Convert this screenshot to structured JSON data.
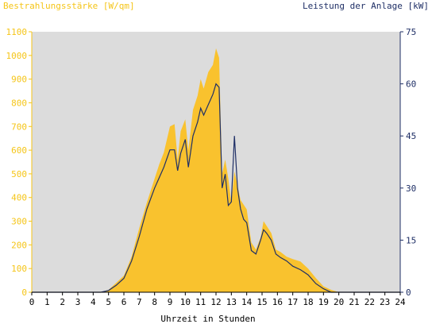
{
  "chart_data": {
    "type": "area",
    "title_left": "Bestrahlungsstärke [W/qm]",
    "title_right": "Leistung der Anlage [kW]",
    "xlabel": "Uhrzeit in Stunden",
    "xlim": [
      0,
      24
    ],
    "ylim_left": [
      0,
      1100
    ],
    "ylim_right": [
      0,
      75
    ],
    "x_ticks": [
      "0",
      "1",
      "2",
      "3",
      "4",
      "5",
      "6",
      "7",
      "8",
      "9",
      "10",
      "11",
      "12",
      "13",
      "14",
      "15",
      "16",
      "17",
      "18",
      "19",
      "20",
      "21",
      "22",
      "23",
      "24"
    ],
    "y_left_ticks": [
      "0",
      "100",
      "200",
      "300",
      "400",
      "500",
      "600",
      "700",
      "800",
      "900",
      "1000",
      "1100"
    ],
    "y_right_ticks": [
      "0",
      "15",
      "30",
      "45",
      "60",
      "75"
    ],
    "grid": false,
    "colors": {
      "irradiance": "#f9c22e",
      "power": "#1f2f66",
      "plot_bg": "#dcdcdc",
      "left_axis": "#f5c518",
      "right_axis": "#1f2f66"
    },
    "series": [
      {
        "axis": "left",
        "x": [
          0,
          4.5,
          5.0,
          5.5,
          6.0,
          6.5,
          7.0,
          7.5,
          8.0,
          8.3,
          8.6,
          9.0,
          9.3,
          9.5,
          9.7,
          10.0,
          10.2,
          10.5,
          10.8,
          11.0,
          11.2,
          11.5,
          11.8,
          12.0,
          12.2,
          12.4,
          12.6,
          12.8,
          13.0,
          13.2,
          13.4,
          13.6,
          13.8,
          14.0,
          14.3,
          14.6,
          14.9,
          15.1,
          15.3,
          15.6,
          15.9,
          16.2,
          16.6,
          17.0,
          17.5,
          18.0,
          18.5,
          19.0,
          19.5,
          20.0,
          24
        ],
        "values": [
          0,
          0,
          10,
          40,
          70,
          150,
          270,
          380,
          480,
          540,
          590,
          700,
          710,
          560,
          680,
          730,
          600,
          770,
          830,
          900,
          860,
          930,
          960,
          1030,
          990,
          500,
          560,
          480,
          380,
          510,
          450,
          390,
          370,
          350,
          210,
          180,
          230,
          300,
          280,
          250,
          180,
          170,
          150,
          140,
          130,
          100,
          60,
          25,
          10,
          0,
          0
        ]
      },
      {
        "axis": "right",
        "x": [
          0,
          4.5,
          5.0,
          5.5,
          6.0,
          6.5,
          7.0,
          7.5,
          8.0,
          8.3,
          8.6,
          9.0,
          9.3,
          9.5,
          9.7,
          10.0,
          10.2,
          10.5,
          10.8,
          11.0,
          11.2,
          11.5,
          11.8,
          12.0,
          12.2,
          12.4,
          12.6,
          12.8,
          13.0,
          13.2,
          13.4,
          13.6,
          13.8,
          14.0,
          14.3,
          14.6,
          14.9,
          15.1,
          15.3,
          15.6,
          15.9,
          16.2,
          16.6,
          17.0,
          17.5,
          18.0,
          18.5,
          19.0,
          19.5,
          20.0,
          24
        ],
        "values": [
          0,
          0,
          0.5,
          2,
          4,
          9,
          16,
          24,
          30,
          33,
          36,
          41,
          41,
          35,
          40,
          44,
          36,
          45,
          49,
          53,
          51,
          54,
          57,
          60,
          59,
          30,
          34,
          25,
          26,
          45,
          30,
          24,
          21,
          20,
          12,
          11,
          15,
          18,
          17,
          15,
          11,
          10,
          9,
          7.5,
          6.5,
          5,
          2.5,
          1,
          0,
          0,
          0
        ]
      }
    ]
  }
}
